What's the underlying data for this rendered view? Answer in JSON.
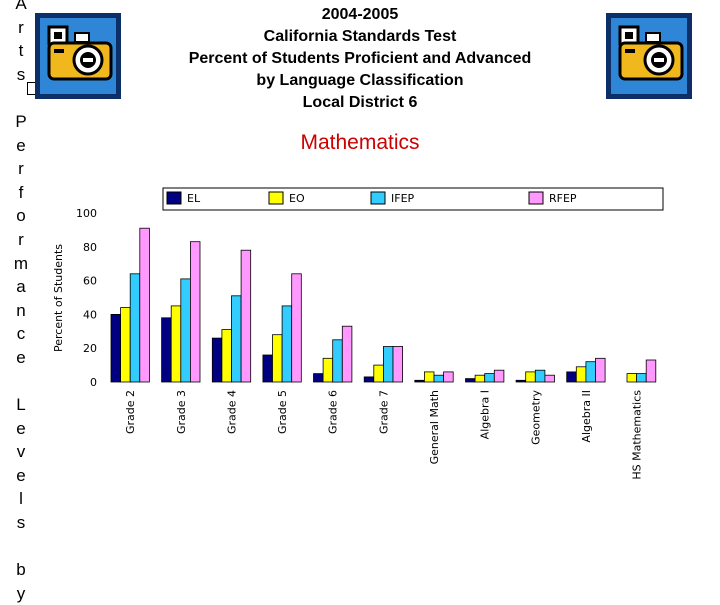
{
  "side_text": [
    "A",
    "r",
    "t",
    "s",
    "",
    "P",
    "e",
    "r",
    "f",
    "o",
    "r",
    "m",
    "a",
    "n",
    "c",
    "e",
    "",
    "L",
    "e",
    "v",
    "e",
    "l",
    "s",
    "",
    "b",
    "y"
  ],
  "title_lines": [
    "2004-2005",
    "California Standards Test",
    "Percent of Students Proficient and Advanced",
    "by Language Classification",
    "Local District 6"
  ],
  "subject": "Mathematics",
  "icons": [
    "camera-icon",
    "camera-icon"
  ],
  "chart_data": {
    "type": "bar",
    "title": "Mathematics",
    "ylabel": "Percent of Students",
    "xlabel": "",
    "ylim": [
      0,
      100
    ],
    "yticks": [
      0,
      20,
      40,
      60,
      80,
      100
    ],
    "grid": false,
    "legend_position": "top",
    "categories": [
      "Grade 2",
      "Grade 3",
      "Grade 4",
      "Grade 5",
      "Grade 6",
      "Grade 7",
      "General Math",
      "Algebra I",
      "Geometry",
      "Algebra II",
      "HS Mathematics"
    ],
    "series": [
      {
        "name": "EL",
        "color": "#000080",
        "values": [
          40,
          38,
          26,
          16,
          5,
          3,
          1,
          2,
          1,
          6,
          0
        ]
      },
      {
        "name": "EO",
        "color": "#ffff00",
        "values": [
          44,
          45,
          31,
          28,
          14,
          10,
          6,
          4,
          6,
          9,
          5
        ]
      },
      {
        "name": "IFEP",
        "color": "#33ccff",
        "values": [
          64,
          61,
          51,
          45,
          25,
          21,
          4,
          5,
          7,
          12,
          5
        ]
      },
      {
        "name": "RFEP",
        "color": "#ff99ff",
        "values": [
          91,
          83,
          78,
          64,
          33,
          21,
          6,
          7,
          4,
          14,
          13
        ]
      }
    ]
  }
}
